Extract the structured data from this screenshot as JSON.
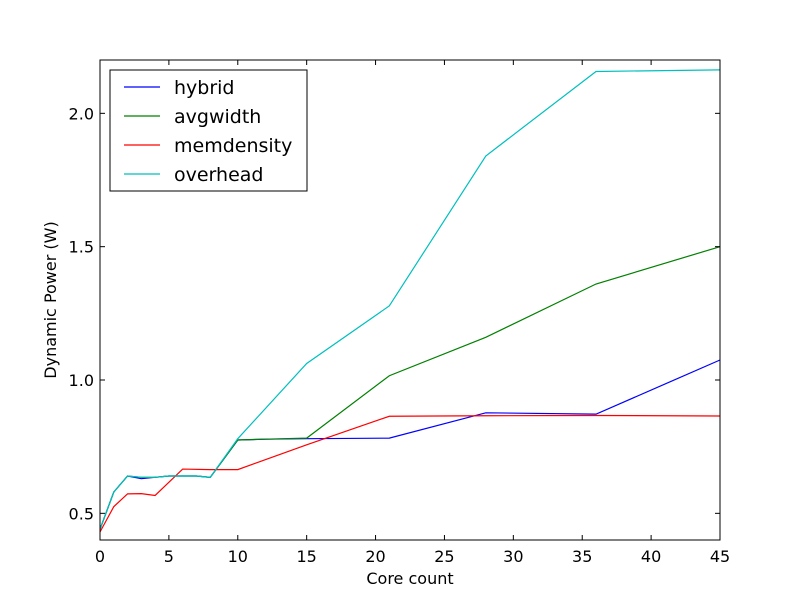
{
  "chart_data": {
    "type": "line",
    "title": "",
    "xlabel": "Core count",
    "ylabel": "Dynamic Power (W)",
    "xlim": [
      0,
      45
    ],
    "ylim": [
      0.4,
      2.2
    ],
    "xticks": [
      0,
      5,
      10,
      15,
      20,
      25,
      30,
      35,
      40,
      45
    ],
    "yticks": [
      0.5,
      1.0,
      1.5,
      2.0
    ],
    "ytick_labels": [
      "0.5",
      "1.0",
      "1.5",
      "2.0"
    ],
    "grid": false,
    "legend_position": "top-left",
    "series": [
      {
        "name": "hybrid",
        "color": "#0000ff",
        "x": [
          0,
          1,
          2,
          3,
          4,
          5,
          6,
          7,
          8,
          10,
          12,
          15,
          21,
          28,
          36,
          45
        ],
        "y": [
          0.44,
          0.58,
          0.64,
          0.63,
          0.635,
          0.64,
          0.64,
          0.64,
          0.635,
          0.775,
          0.778,
          0.78,
          0.782,
          0.877,
          0.872,
          1.075
        ]
      },
      {
        "name": "avgwidth",
        "color": "#008000",
        "x": [
          0,
          1,
          2,
          3,
          4,
          5,
          6,
          7,
          8,
          10,
          12,
          15,
          21,
          28,
          36,
          45
        ],
        "y": [
          0.44,
          0.58,
          0.64,
          0.635,
          0.635,
          0.64,
          0.64,
          0.64,
          0.635,
          0.775,
          0.778,
          0.782,
          1.016,
          1.16,
          1.36,
          1.5
        ]
      },
      {
        "name": "memdensity",
        "color": "#ff0000",
        "x": [
          0,
          1,
          2,
          3,
          4,
          6,
          8,
          10,
          15,
          21,
          28,
          36,
          45
        ],
        "y": [
          0.43,
          0.525,
          0.573,
          0.574,
          0.567,
          0.666,
          0.664,
          0.664,
          0.757,
          0.864,
          0.866,
          0.867,
          0.865
        ]
      },
      {
        "name": "overhead",
        "color": "#00bfbf",
        "x": [
          0,
          1,
          2,
          3,
          4,
          5,
          6,
          7,
          8,
          10,
          15,
          21,
          28,
          36,
          45
        ],
        "y": [
          0.44,
          0.58,
          0.64,
          0.635,
          0.635,
          0.64,
          0.64,
          0.64,
          0.635,
          0.78,
          1.062,
          1.278,
          1.84,
          2.157,
          2.163
        ]
      }
    ]
  }
}
